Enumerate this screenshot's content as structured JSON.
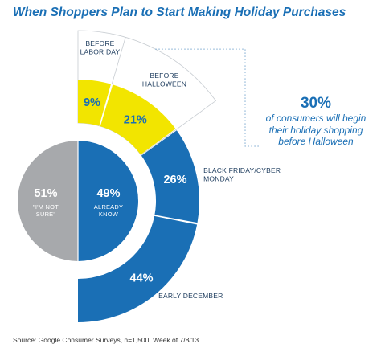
{
  "chart_data": {
    "type": "pie",
    "title": "When Shoppers Plan to Start Making Holiday Purchases",
    "inner": {
      "slices": [
        {
          "label": "\"I'M NOT SURE\"",
          "label_lines": [
            "\"I'M NOT",
            "SURE\""
          ],
          "value": 51,
          "display": "51%",
          "color": "#a7a9ac"
        },
        {
          "label": "ALREADY KNOW",
          "label_lines": [
            "ALREADY",
            "KNOW"
          ],
          "value": 49,
          "display": "49%",
          "color": "#1a6fb5"
        }
      ]
    },
    "outer": {
      "base": "ALREADY KNOW",
      "slices": [
        {
          "label": "BEFORE LABOR DAY",
          "label_lines": [
            "BEFORE",
            "LABOR DAY"
          ],
          "value": 9,
          "display": "9%",
          "color": "#f2e500",
          "highlighted": true
        },
        {
          "label": "BEFORE HALLOWEEN",
          "label_lines": [
            "BEFORE",
            "HALLOWEEN"
          ],
          "value": 21,
          "display": "21%",
          "color": "#f2e500",
          "highlighted": true
        },
        {
          "label": "BLACK FRIDAY/CYBER MONDAY",
          "label_lines": [
            "BLACK FRIDAY/CYBER",
            "MONDAY"
          ],
          "value": 26,
          "display": "26%",
          "color": "#1a6fb5",
          "highlighted": false
        },
        {
          "label": "EARLY DECEMBER",
          "label_lines": [
            "EARLY DECEMBER"
          ],
          "value": 44,
          "display": "44%",
          "color": "#1a6fb5",
          "highlighted": false
        }
      ]
    },
    "callout": {
      "value": "30%",
      "text": "of consumers will begin their holiday shopping before Halloween"
    },
    "source": "Source: Google Consumer Surveys, n=1,500, Week of 7/8/13"
  }
}
